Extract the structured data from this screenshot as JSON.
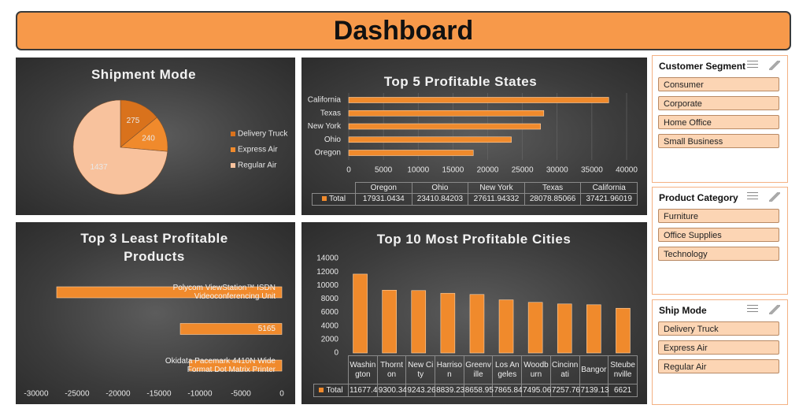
{
  "header": {
    "title": "Dashboard"
  },
  "chart_data": [
    {
      "type": "pie",
      "title": "Shipment Mode",
      "categories": [
        "Delivery Truck",
        "Express Air",
        "Regular Air"
      ],
      "values": [
        275,
        240,
        1437
      ],
      "colors": [
        "#d9721c",
        "#f08a2c",
        "#f8c29d"
      ]
    },
    {
      "type": "bar",
      "title": "Top 5 Profitable States",
      "categories": [
        "Oregon",
        "Ohio",
        "New York",
        "Texas",
        "California"
      ],
      "values": [
        17931.0434,
        23410.84203,
        27611.94332,
        28078.85066,
        37421.96019
      ],
      "color": "#f08a2c",
      "series_name": "Total",
      "xlim": [
        0,
        40000
      ],
      "xticks": [
        0,
        5000,
        10000,
        15000,
        20000,
        25000,
        30000,
        35000,
        40000
      ],
      "grid": true
    },
    {
      "type": "bar",
      "title": "Top 3 Least Profitable Products",
      "categories": [
        "Okidata Pacemark 4410N Wide Format Dot Matrix Printer",
        "5165",
        "Polycom ViewStation™ ISDN Videoconferencing Unit"
      ],
      "values": [
        -11300,
        -12400,
        -27500
      ],
      "color": "#f08a2c",
      "xlim": [
        -30000,
        0
      ],
      "xticks": [
        -30000,
        -25000,
        -20000,
        -15000,
        -10000,
        -5000,
        0
      ],
      "grid": false
    },
    {
      "type": "column",
      "title": "Top 10 Most Profitable Cities",
      "categories": [
        "Washington",
        "Thornton",
        "New City",
        "Harrison",
        "Greenville",
        "Los Angeles",
        "Woodburn",
        "Cincinnati",
        "Bangor",
        "Steubenville"
      ],
      "values": [
        11677.4,
        9300.34,
        9243.26,
        8839.23,
        8658.95,
        7865.84,
        7495.06,
        7257.76,
        7139.13,
        6621
      ],
      "color": "#f08a2c",
      "series_name": "Total",
      "ylim": [
        0,
        14000
      ],
      "yticks": [
        0,
        2000,
        4000,
        6000,
        8000,
        10000,
        12000,
        14000
      ],
      "grid": false
    }
  ],
  "slicers": [
    {
      "title": "Customer Segment",
      "items": [
        "Consumer",
        "Corporate",
        "Home Office",
        "Small Business"
      ]
    },
    {
      "title": "Product Category",
      "items": [
        "Furniture",
        "Office Supplies",
        "Technology"
      ]
    },
    {
      "title": "Ship Mode",
      "items": [
        "Delivery Truck",
        "Express Air",
        "Regular Air"
      ]
    }
  ]
}
